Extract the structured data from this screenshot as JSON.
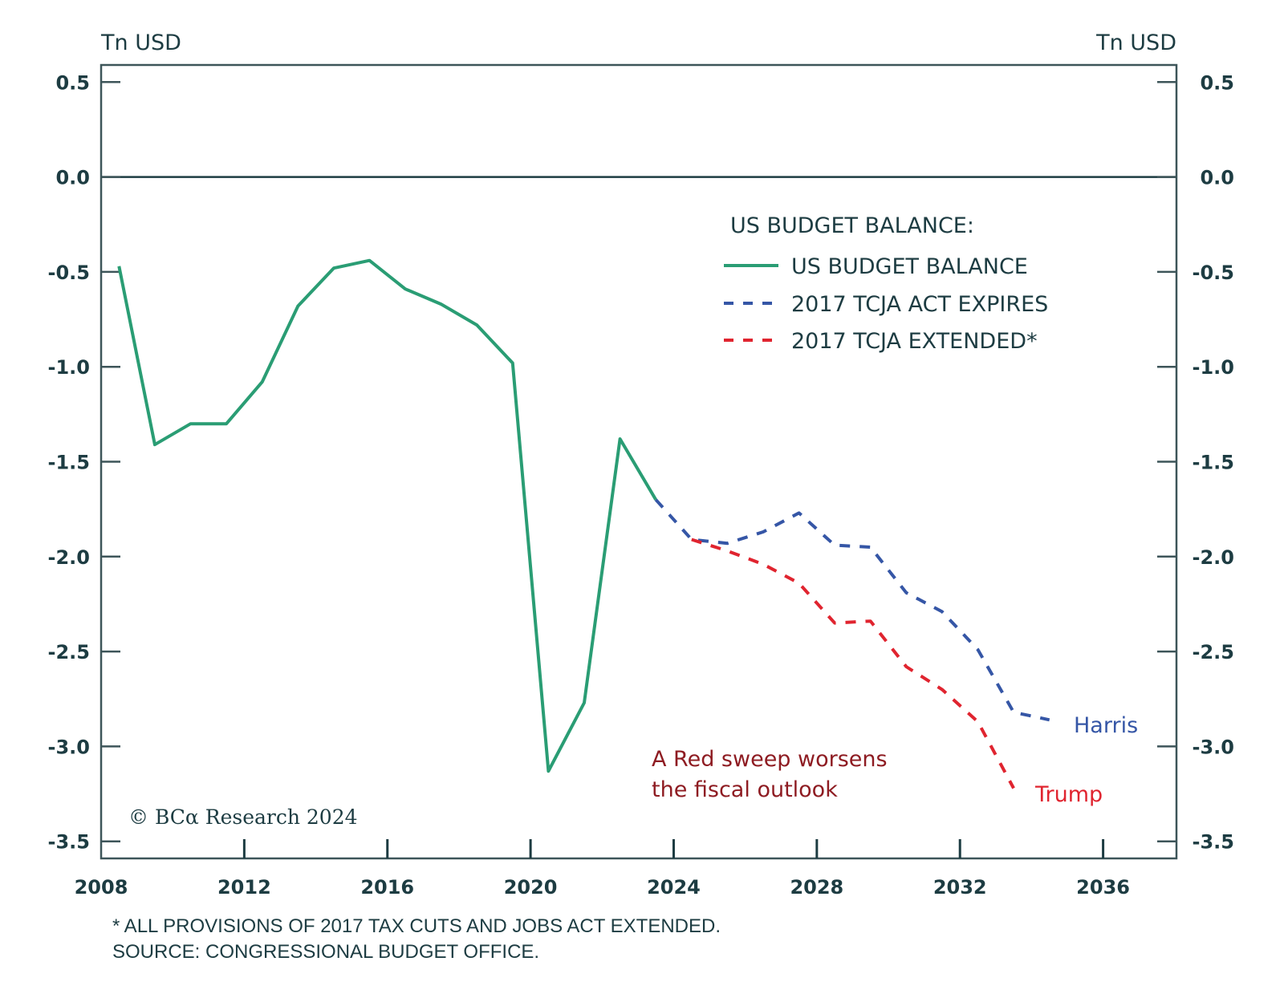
{
  "chart_data": {
    "type": "line",
    "title": "",
    "ylabel_left": "Tn USD",
    "ylabel_right": "Tn USD",
    "xlabel": "",
    "ylim": [
      -3.59,
      0.59
    ],
    "xlim": [
      2008,
      2038.05
    ],
    "x_offset_note": "annual fiscal-year values plotted at mid-year",
    "y_ticks": [
      0.5,
      0.0,
      -0.5,
      -1.0,
      -1.5,
      -2.0,
      -2.5,
      -3.0,
      -3.5
    ],
    "y_tick_labels": [
      "0.5",
      "0.0",
      "-0.5",
      "-1.0",
      "-1.5",
      "-2.0",
      "-2.5",
      "-3.0",
      "-3.5"
    ],
    "x_ticks": [
      2008,
      2012,
      2016,
      2020,
      2024,
      2028,
      2032,
      2036
    ],
    "x_tick_labels": [
      "2008",
      "2012",
      "2016",
      "2020",
      "2024",
      "2028",
      "2032",
      "2036"
    ],
    "zero_line": true,
    "grid": false,
    "legend": {
      "title": "US BUDGET BALANCE:",
      "placement": "top-right",
      "entries": [
        "US BUDGET BALANCE",
        "2017 TCJA ACT EXPIRES",
        "2017 TCJA EXTENDED*"
      ]
    },
    "series": [
      {
        "name": "US BUDGET BALANCE",
        "style": "solid",
        "color": "#2a9d74",
        "x": [
          2008,
          2009,
          2010,
          2011,
          2012,
          2013,
          2014,
          2015,
          2016,
          2017,
          2018,
          2019,
          2020,
          2021,
          2022,
          2023
        ],
        "values": [
          -0.47,
          -1.41,
          -1.3,
          -1.3,
          -1.08,
          -0.68,
          -0.48,
          -0.44,
          -0.59,
          -0.67,
          -0.78,
          -0.98,
          -3.13,
          -2.77,
          -1.38,
          -1.7
        ]
      },
      {
        "name": "2017 TCJA ACT EXPIRES",
        "style": "dashed",
        "color": "#3556a6",
        "x": [
          2023,
          2024,
          2025,
          2026,
          2027,
          2028,
          2029,
          2030,
          2031,
          2032,
          2033,
          2034
        ],
        "values": [
          -1.7,
          -1.91,
          -1.93,
          -1.87,
          -1.77,
          -1.94,
          -1.95,
          -2.19,
          -2.29,
          -2.49,
          -2.82,
          -2.86
        ]
      },
      {
        "name": "2017 TCJA EXTENDED*",
        "style": "dashed",
        "color": "#e0242f",
        "x": [
          2024,
          2025,
          2026,
          2027,
          2028,
          2029,
          2030,
          2031,
          2032,
          2033
        ],
        "values": [
          -1.91,
          -1.97,
          -2.04,
          -2.14,
          -2.35,
          -2.34,
          -2.58,
          -2.7,
          -2.87,
          -3.22
        ]
      }
    ],
    "annotations": {
      "harris": "Harris",
      "trump": "Trump",
      "red_sweep_line1": "A Red sweep worsens",
      "red_sweep_line2": "the fiscal outlook",
      "copyright": "© BCα Research 2024"
    },
    "footnotes": [
      "* ALL PROVISIONS OF 2017 TAX CUTS AND JOBS ACT EXTENDED.",
      "SOURCE: CONGRESSIONAL BUDGET OFFICE."
    ]
  },
  "colors": {
    "text": "#1d3c42",
    "axis": "#3d5559",
    "green": "#2a9d74",
    "blue": "#3556a6",
    "red": "#e0242f",
    "annotation_red": "#8e1c22"
  }
}
